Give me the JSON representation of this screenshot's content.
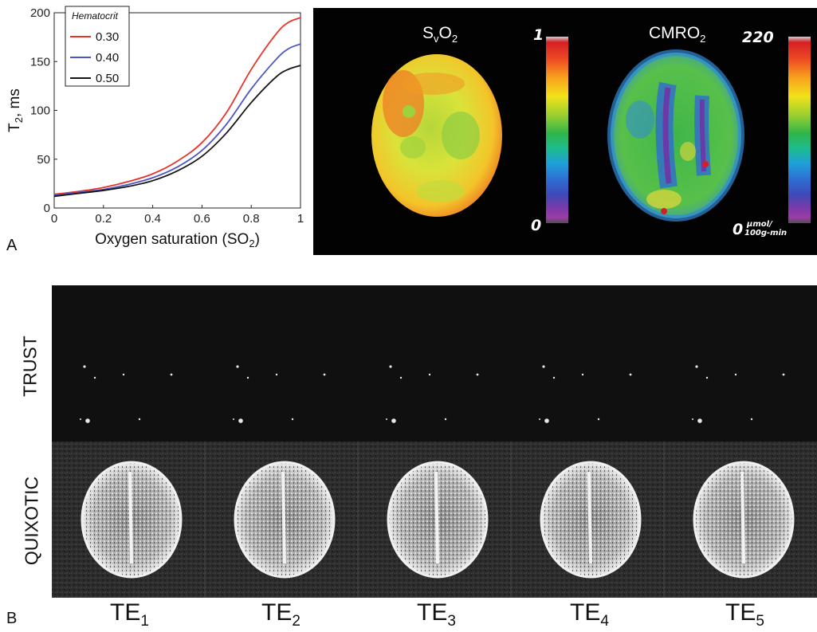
{
  "panel_a": {
    "letter": "A",
    "maps": [
      {
        "title": "S",
        "title_sub": "v",
        "title_rest": "O",
        "title_sub2": "2",
        "cbar_max": "1",
        "cbar_min": "0",
        "unit": ""
      },
      {
        "title": "CMRO",
        "title_sub": "",
        "title_rest": "",
        "title_sub2": "2",
        "cbar_max": "220",
        "cbar_min": "0",
        "unit_top": "µmol/",
        "unit_bottom": "100g-min"
      }
    ],
    "colorbar_colors": [
      "#d51f26",
      "#ee5a24",
      "#f7a21b",
      "#f2e21a",
      "#9ccf30",
      "#2fb44a",
      "#1dbb8e",
      "#1ea0d8",
      "#2f6bd1",
      "#4048b8",
      "#6c3aa8",
      "#9b3ca8"
    ]
  },
  "panel_b": {
    "letter": "B",
    "rows": [
      "TRUST",
      "QUIXOTIC"
    ],
    "columns": [
      {
        "base": "TE",
        "sub": "1"
      },
      {
        "base": "TE",
        "sub": "2"
      },
      {
        "base": "TE",
        "sub": "3"
      },
      {
        "base": "TE",
        "sub": "4"
      },
      {
        "base": "TE",
        "sub": "5"
      }
    ]
  },
  "chart_data": {
    "type": "line",
    "xlabel": "Oxygen saturation (SO",
    "xlabel_sub": "2",
    "xlabel_end": ")",
    "ylabel": "T",
    "ylabel_sub": "2",
    "ylabel_end": ", ms",
    "xlim": [
      0,
      1
    ],
    "ylim": [
      0,
      200
    ],
    "xticks": [
      0,
      0.2,
      0.4,
      0.6,
      0.8,
      1
    ],
    "yticks": [
      0,
      50,
      100,
      150,
      200
    ],
    "grid": false,
    "legend_title": "Hematocrit",
    "legend_position": "top-left",
    "x": [
      0,
      0.1,
      0.2,
      0.3,
      0.4,
      0.5,
      0.6,
      0.7,
      0.8,
      0.9,
      0.95,
      1.0
    ],
    "series": [
      {
        "name": "0.30",
        "color": "#e8332a",
        "values": [
          14,
          17,
          21,
          27,
          35,
          48,
          67,
          98,
          142,
          178,
          190,
          195
        ]
      },
      {
        "name": "0.40",
        "color": "#4a55c8",
        "values": [
          13,
          16,
          19,
          24,
          31,
          42,
          59,
          86,
          122,
          152,
          163,
          168
        ]
      },
      {
        "name": "0.50",
        "color": "#151515",
        "values": [
          12,
          15,
          18,
          22,
          28,
          38,
          53,
          77,
          108,
          134,
          142,
          146
        ]
      }
    ]
  }
}
